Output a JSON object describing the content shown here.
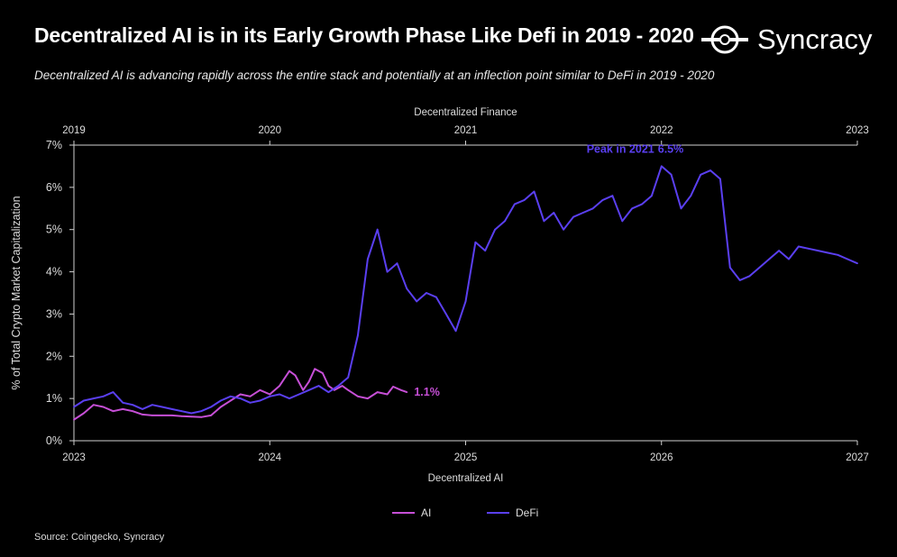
{
  "header": {
    "title": "Decentralized AI is in its Early Growth Phase Like Defi in 2019 - 2020",
    "subtitle": "Decentralized AI is advancing rapidly across the entire stack and potentially at an inflection point similar to DeFi in 2019 - 2020",
    "brand": "Syncracy"
  },
  "footer": {
    "source": "Source: Coingecko, Syncracy"
  },
  "colors": {
    "ai": "#c64fd6",
    "defi": "#5a3ff0",
    "axis": "#cfcfcf",
    "background": "#000000"
  },
  "chart_data": {
    "type": "line",
    "title": "Decentralized AI is in its Early Growth Phase Like Defi in 2019 - 2020",
    "ylabel": "% of Total Crypto Market Capitalization",
    "ylim": [
      0,
      7
    ],
    "yticks": [
      "0%",
      "1%",
      "2%",
      "3%",
      "4%",
      "5%",
      "6%",
      "7%"
    ],
    "top_axis": {
      "label": "Decentralized Finance",
      "ticks": [
        "2019",
        "2020",
        "2021",
        "2022",
        "2023"
      ],
      "range": [
        2019,
        2023
      ]
    },
    "bottom_axis": {
      "label": "Decentralized AI",
      "ticks": [
        "2023",
        "2024",
        "2025",
        "2026",
        "2027"
      ],
      "range": [
        2023,
        2027
      ]
    },
    "legend": {
      "position": "bottom-center",
      "entries": [
        "AI",
        "DeFi"
      ]
    },
    "annotations": {
      "ai_last": "1.1%",
      "defi_peak_label": "Peak in 2021",
      "defi_peak_value": "6.5%"
    },
    "series": [
      {
        "name": "AI",
        "axis": "bottom",
        "x": [
          2023.0,
          2023.05,
          2023.1,
          2023.15,
          2023.2,
          2023.25,
          2023.3,
          2023.35,
          2023.4,
          2023.45,
          2023.5,
          2023.55,
          2023.6,
          2023.65,
          2023.7,
          2023.75,
          2023.8,
          2023.85,
          2023.9,
          2023.95,
          2024.0,
          2024.05,
          2024.1,
          2024.13,
          2024.17,
          2024.2,
          2024.23,
          2024.27,
          2024.3,
          2024.33,
          2024.37,
          2024.4,
          2024.45,
          2024.5,
          2024.55,
          2024.6,
          2024.63,
          2024.67,
          2024.7
        ],
        "values": [
          0.5,
          0.65,
          0.85,
          0.8,
          0.7,
          0.75,
          0.7,
          0.62,
          0.6,
          0.6,
          0.6,
          0.58,
          0.57,
          0.56,
          0.6,
          0.8,
          0.95,
          1.1,
          1.05,
          1.2,
          1.1,
          1.3,
          1.65,
          1.55,
          1.2,
          1.4,
          1.7,
          1.6,
          1.3,
          1.2,
          1.3,
          1.2,
          1.05,
          1.0,
          1.15,
          1.1,
          1.28,
          1.2,
          1.15
        ]
      },
      {
        "name": "DeFi",
        "axis": "top",
        "x": [
          2019.0,
          2019.05,
          2019.1,
          2019.15,
          2019.2,
          2019.25,
          2019.3,
          2019.35,
          2019.4,
          2019.45,
          2019.5,
          2019.55,
          2019.6,
          2019.65,
          2019.7,
          2019.75,
          2019.8,
          2019.85,
          2019.9,
          2019.95,
          2020.0,
          2020.05,
          2020.1,
          2020.15,
          2020.2,
          2020.25,
          2020.3,
          2020.35,
          2020.4,
          2020.45,
          2020.5,
          2020.55,
          2020.6,
          2020.65,
          2020.7,
          2020.75,
          2020.8,
          2020.85,
          2020.9,
          2020.95,
          2021.0,
          2021.05,
          2021.1,
          2021.15,
          2021.2,
          2021.25,
          2021.3,
          2021.35,
          2021.4,
          2021.45,
          2021.5,
          2021.55,
          2021.6,
          2021.65,
          2021.7,
          2021.75,
          2021.8,
          2021.85,
          2021.9,
          2021.95,
          2022.0,
          2022.05,
          2022.1,
          2022.15,
          2022.2,
          2022.25,
          2022.3,
          2022.35,
          2022.4,
          2022.45,
          2022.5,
          2022.55,
          2022.6,
          2022.65,
          2022.7,
          2022.75,
          2022.8,
          2022.85,
          2022.9,
          2022.95,
          2023.0
        ],
        "values": [
          0.8,
          0.95,
          1.0,
          1.05,
          1.15,
          0.9,
          0.85,
          0.75,
          0.85,
          0.8,
          0.75,
          0.7,
          0.65,
          0.7,
          0.8,
          0.95,
          1.05,
          1.0,
          0.9,
          0.95,
          1.05,
          1.1,
          1.0,
          1.1,
          1.2,
          1.3,
          1.15,
          1.3,
          1.5,
          2.5,
          4.3,
          5.0,
          4.0,
          4.2,
          3.6,
          3.3,
          3.5,
          3.4,
          3.0,
          2.6,
          3.3,
          4.7,
          4.5,
          5.0,
          5.2,
          5.6,
          5.7,
          5.9,
          5.2,
          5.4,
          5.0,
          5.3,
          5.4,
          5.5,
          5.7,
          5.8,
          5.2,
          5.5,
          5.6,
          5.8,
          6.5,
          6.3,
          5.5,
          5.8,
          6.3,
          6.4,
          6.2,
          4.1,
          3.8,
          3.9,
          4.1,
          4.3,
          4.5,
          4.3,
          4.6,
          4.55,
          4.5,
          4.45,
          4.4,
          4.3,
          4.2
        ]
      }
    ]
  }
}
